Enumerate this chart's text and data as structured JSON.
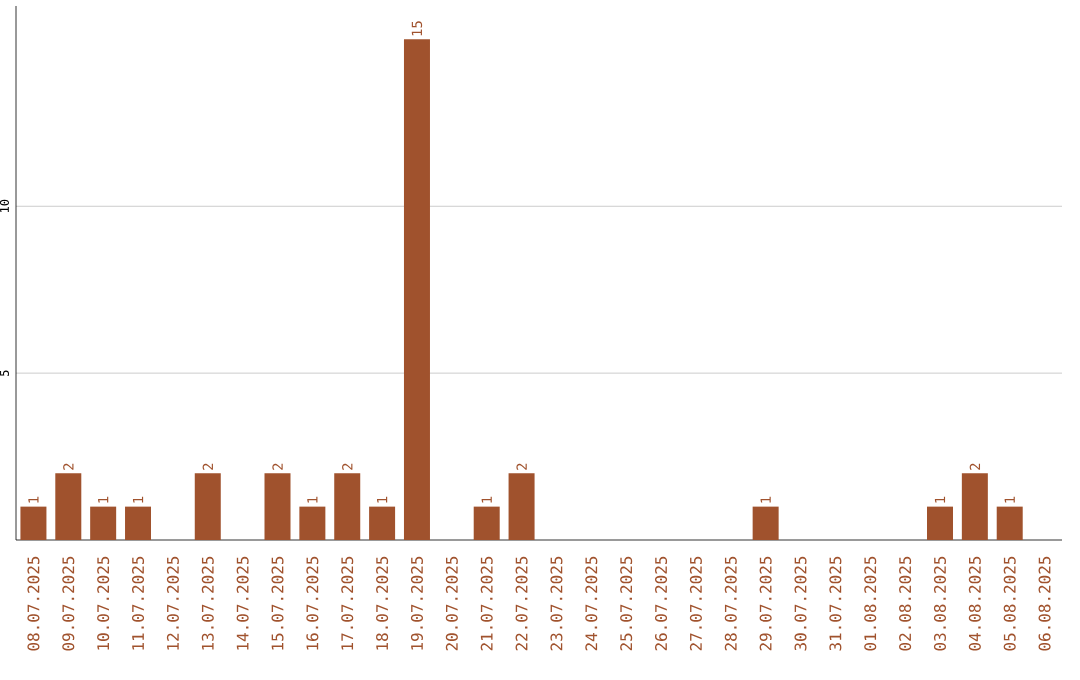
{
  "chart_data": {
    "type": "bar",
    "color": "#a0522d",
    "categories": [
      "08.07.2025",
      "09.07.2025",
      "10.07.2025",
      "11.07.2025",
      "12.07.2025",
      "13.07.2025",
      "14.07.2025",
      "15.07.2025",
      "16.07.2025",
      "17.07.2025",
      "18.07.2025",
      "19.07.2025",
      "20.07.2025",
      "21.07.2025",
      "22.07.2025",
      "23.07.2025",
      "24.07.2025",
      "25.07.2025",
      "26.07.2025",
      "27.07.2025",
      "28.07.2025",
      "29.07.2025",
      "30.07.2025",
      "31.07.2025",
      "01.08.2025",
      "02.08.2025",
      "03.08.2025",
      "04.08.2025",
      "05.08.2025",
      "06.08.2025"
    ],
    "values": [
      1,
      2,
      1,
      1,
      0,
      2,
      0,
      2,
      1,
      2,
      1,
      15,
      0,
      1,
      2,
      0,
      0,
      0,
      0,
      0,
      0,
      1,
      0,
      0,
      0,
      0,
      1,
      2,
      1,
      0
    ],
    "value_labels": [
      "1",
      "2",
      "1",
      "1",
      null,
      "2",
      null,
      "2",
      "1",
      "2",
      "1",
      "15",
      null,
      "1",
      "2",
      null,
      null,
      null,
      null,
      null,
      null,
      "1",
      null,
      null,
      null,
      null,
      "1",
      "2",
      "1",
      null
    ],
    "ylim": [
      0,
      16
    ],
    "yticks": [
      5,
      10
    ],
    "grid": "y"
  }
}
